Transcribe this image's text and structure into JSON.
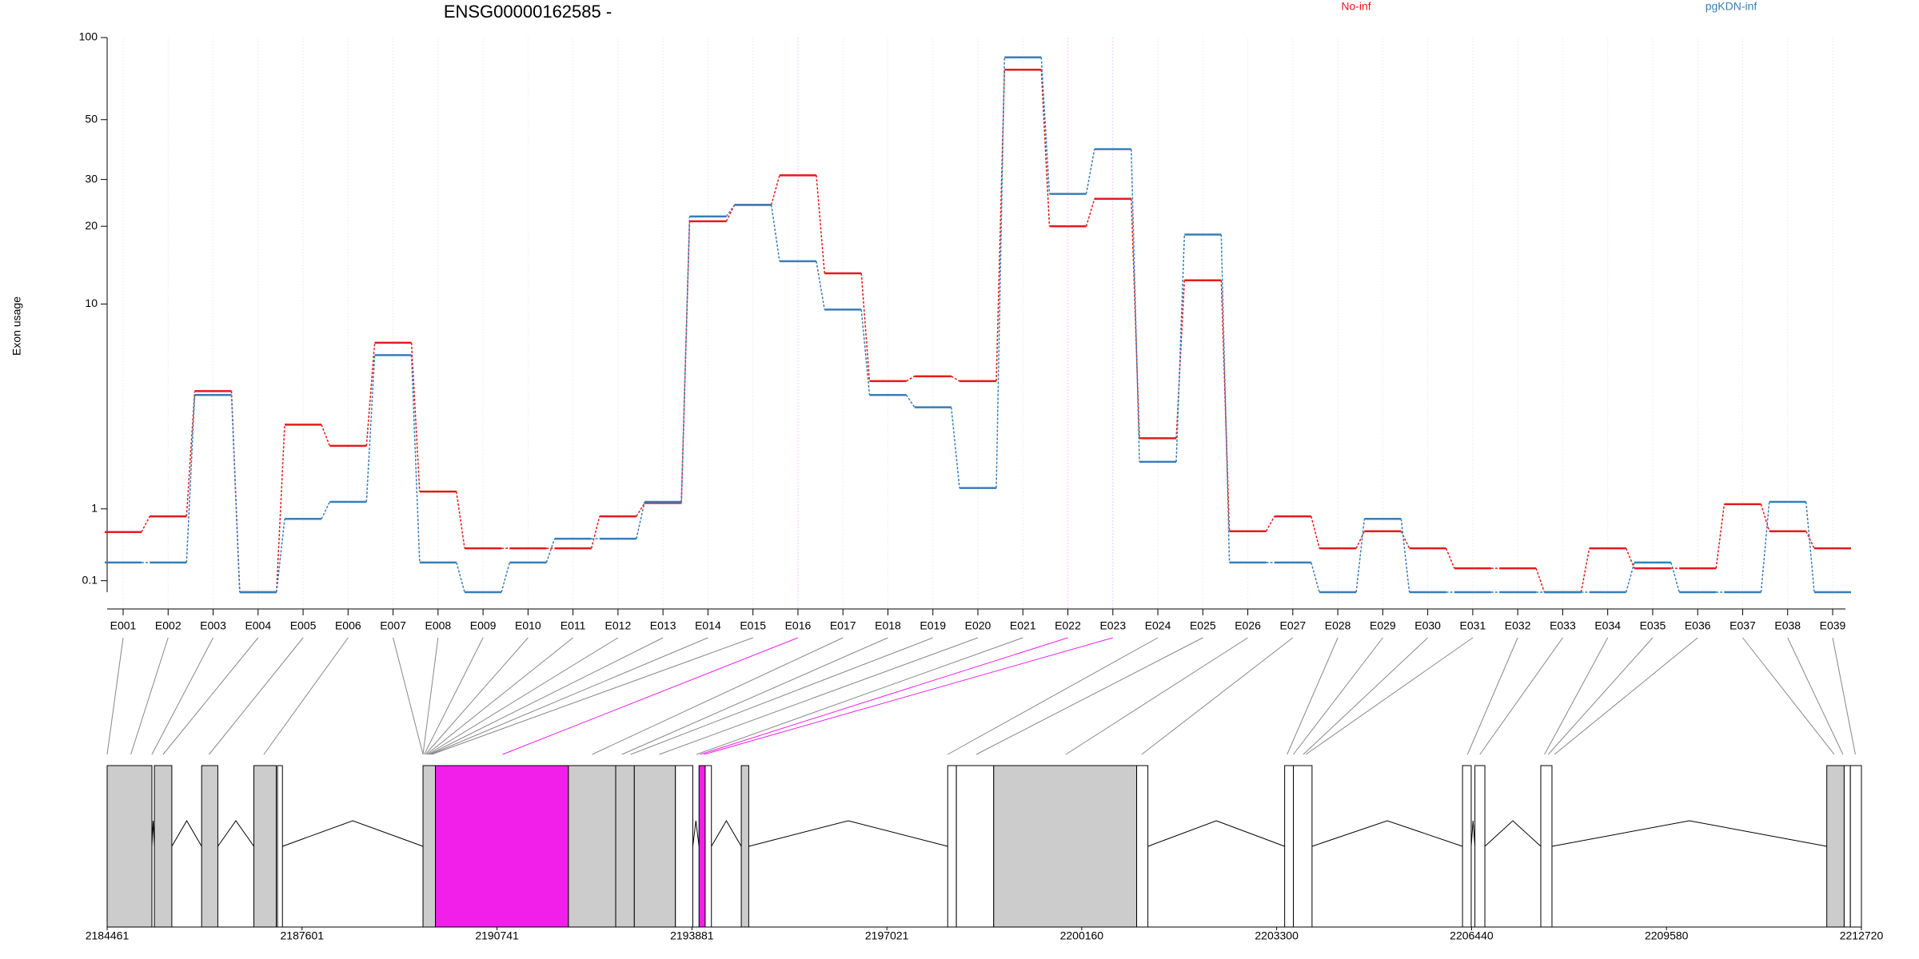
{
  "chart_data": {
    "type": "step",
    "title": "ENSG00000162585 -",
    "y_label": "Exon usage",
    "yscale": "log1p",
    "ylim": [
      0,
      100
    ],
    "yticks": [
      0.1,
      1,
      10,
      20,
      30,
      50,
      100
    ],
    "grid": true,
    "categories": [
      "E001",
      "E002",
      "E003",
      "E004",
      "E005",
      "E006",
      "E007",
      "E008",
      "E009",
      "E010",
      "E011",
      "E012",
      "E013",
      "E014",
      "E015",
      "E016",
      "E017",
      "E018",
      "E019",
      "E020",
      "E021",
      "E022",
      "E023",
      "E024",
      "E025",
      "E026",
      "E027",
      "E028",
      "E029",
      "E030",
      "E031",
      "E032",
      "E033",
      "E034",
      "E035",
      "E036",
      "E037",
      "E038",
      "E039"
    ],
    "series": [
      {
        "name": "No-inf",
        "color": "#e41a1c",
        "values": [
          0.65,
          0.88,
          4.33,
          0,
          3.03,
          2.38,
          6.97,
          1.31,
          0.44,
          0.44,
          0.44,
          0.88,
          1.1,
          20.9,
          24.1,
          31.1,
          13.2,
          4.79,
          5.03,
          4.79,
          76.3,
          20.0,
          25.4,
          2.6,
          12.4,
          0.66,
          0.88,
          0.44,
          0.66,
          0.44,
          0.22,
          0.22,
          0,
          0.44,
          0.22,
          0.22,
          1.08,
          0.66,
          0.44
        ]
      },
      {
        "name": "pgKDN-inf",
        "color": "#377eb8",
        "values": [
          0.28,
          0.28,
          4.16,
          0,
          0.84,
          1.12,
          6.19,
          0.28,
          0,
          0.28,
          0.56,
          0.56,
          1.12,
          21.8,
          24.1,
          14.7,
          9.5,
          4.16,
          3.66,
          1.38,
          84.7,
          26.5,
          38.9,
          1.96,
          18.6,
          0.28,
          0.28,
          0,
          0.84,
          0,
          0,
          0,
          0,
          0,
          0.28,
          0,
          0,
          1.12,
          0
        ]
      }
    ],
    "exon_line_colors": [
      "#888888",
      "#888888",
      "#888888",
      "#888888",
      "#888888",
      "#888888",
      "#888888",
      "#888888",
      "#888888",
      "#888888",
      "#888888",
      "#888888",
      "#888888",
      "#888888",
      "#888888",
      "#f11fe9",
      "#888888",
      "#888888",
      "#888888",
      "#888888",
      "#888888",
      "#f11fe9",
      "#f11fe9",
      "#888888",
      "#888888",
      "#888888",
      "#888888",
      "#888888",
      "#888888",
      "#888888",
      "#888888",
      "#888888",
      "#888888",
      "#888888",
      "#888888",
      "#888888",
      "#888888",
      "#888888",
      "#888888"
    ],
    "gene_model": {
      "xlim": [
        2184461,
        2212720
      ],
      "xticks": [
        2184461,
        2187601,
        2190741,
        2193881,
        2197021,
        2200160,
        2203300,
        2206440,
        2209580,
        2212720
      ],
      "exon_positions": [
        2184461,
        2184842,
        2185182,
        2185362,
        2186103,
        2186985,
        2189549,
        2189549,
        2189569,
        2189589,
        2189609,
        2189629,
        2189649,
        2189669,
        2189689,
        2190831,
        2192273,
        2192754,
        2192894,
        2193355,
        2193955,
        2194015,
        2194075,
        2198001,
        2198462,
        2199904,
        2201126,
        2203469,
        2203569,
        2203730,
        2203770,
        2206374,
        2206574,
        2207615,
        2207675,
        2207776,
        2212282,
        2212422,
        2212622
      ],
      "blocks": [
        {
          "start": 2184461,
          "end": 2185182,
          "color": "#cccccc"
        },
        {
          "start": 2185222,
          "end": 2185503,
          "color": "#cccccc"
        },
        {
          "start": 2185983,
          "end": 2186244,
          "color": "#cccccc"
        },
        {
          "start": 2186825,
          "end": 2187185,
          "color": "#cccccc"
        },
        {
          "start": 2187205,
          "end": 2187285,
          "color": "#ffffff"
        },
        {
          "start": 2189549,
          "end": 2189749,
          "color": "#cccccc"
        },
        {
          "start": 2189749,
          "end": 2191892,
          "color": "#f11fe9"
        },
        {
          "start": 2191892,
          "end": 2192653,
          "color": "#cccccc"
        },
        {
          "start": 2192653,
          "end": 2192953,
          "color": "#cccccc"
        },
        {
          "start": 2192953,
          "end": 2193615,
          "color": "#cccccc"
        },
        {
          "start": 2193615,
          "end": 2193895,
          "color": "#ffffff"
        },
        {
          "start": 2193995,
          "end": 2194095,
          "color": "#f11fe9"
        },
        {
          "start": 2194095,
          "end": 2194195,
          "color": "#ffffff"
        },
        {
          "start": 2194676,
          "end": 2194796,
          "color": "#cccccc"
        },
        {
          "start": 2198001,
          "end": 2198141,
          "color": "#ffffff"
        },
        {
          "start": 2198141,
          "end": 2198742,
          "color": "#ffffff"
        },
        {
          "start": 2198742,
          "end": 2201045,
          "color": "#cccccc"
        },
        {
          "start": 2201045,
          "end": 2201226,
          "color": "#ffffff"
        },
        {
          "start": 2203429,
          "end": 2203569,
          "color": "#ffffff"
        },
        {
          "start": 2203569,
          "end": 2203870,
          "color": "#ffffff"
        },
        {
          "start": 2206294,
          "end": 2206434,
          "color": "#ffffff"
        },
        {
          "start": 2206494,
          "end": 2206654,
          "color": "#ffffff"
        },
        {
          "start": 2207555,
          "end": 2207735,
          "color": "#ffffff"
        },
        {
          "start": 2212162,
          "end": 2212442,
          "color": "#cccccc"
        },
        {
          "start": 2212442,
          "end": 2212542,
          "color": "#ffffff"
        },
        {
          "start": 2212542,
          "end": 2212720,
          "color": "#ffffff"
        }
      ]
    }
  }
}
